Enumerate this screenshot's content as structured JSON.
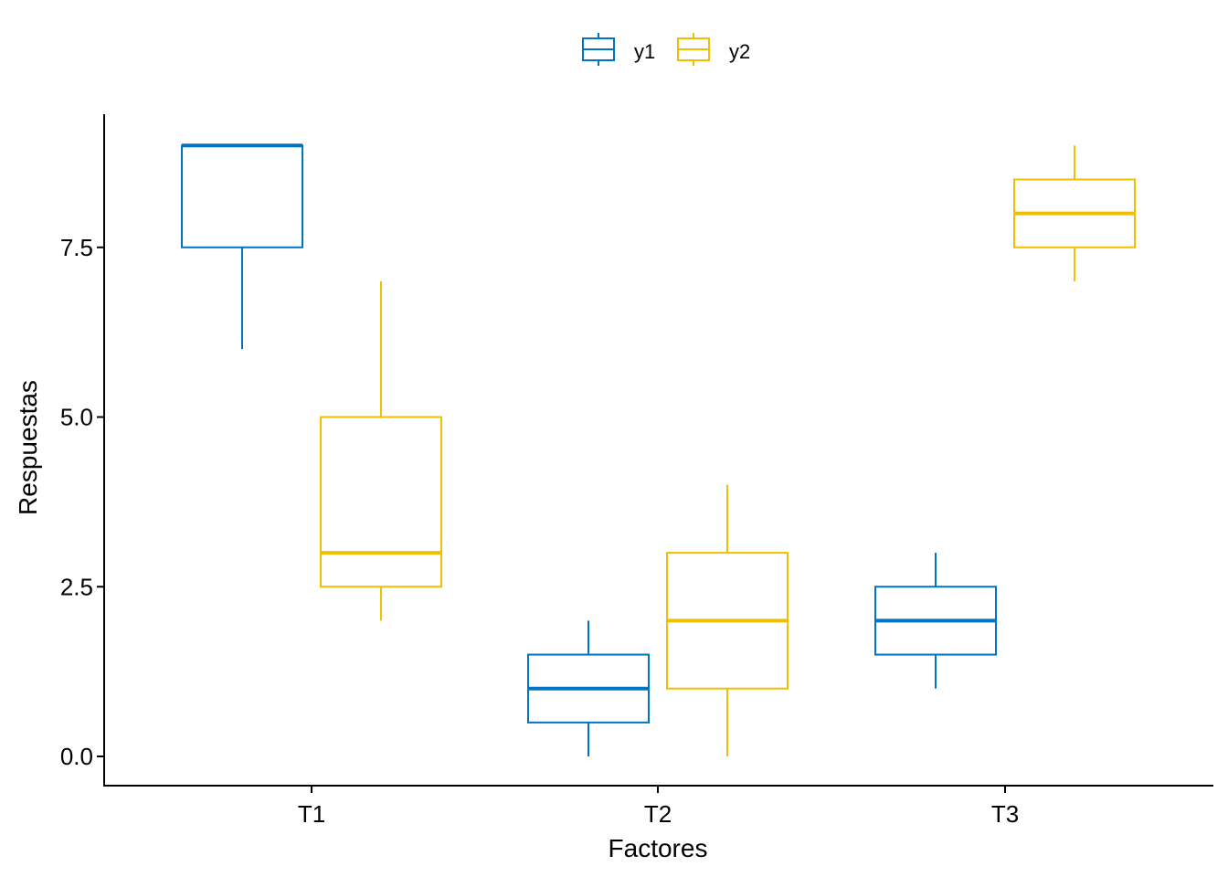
{
  "chart_data": {
    "type": "boxplot",
    "title": "",
    "xlabel": "Factores",
    "ylabel": "Respuestas",
    "categories": [
      "T1",
      "T2",
      "T3"
    ],
    "ylim": [
      -0.43,
      9.43
    ],
    "yticks": [
      0.0,
      2.5,
      5.0,
      7.5
    ],
    "ytick_labels": [
      "0.0",
      "2.5",
      "5.0",
      "7.5"
    ],
    "grid": false,
    "legend_position": "top",
    "series": [
      {
        "name": "y1",
        "color": "#0073C2",
        "boxes": [
          {
            "category": "T1",
            "min": 6,
            "q1": 7.5,
            "median": 9,
            "q3": 9,
            "max": 9
          },
          {
            "category": "T2",
            "min": 0,
            "q1": 0.5,
            "median": 1,
            "q3": 1.5,
            "max": 2
          },
          {
            "category": "T3",
            "min": 1,
            "q1": 1.5,
            "median": 2,
            "q3": 2.5,
            "max": 3
          }
        ]
      },
      {
        "name": "y2",
        "color": "#EFC000",
        "boxes": [
          {
            "category": "T1",
            "min": 2,
            "q1": 2.5,
            "median": 3,
            "q3": 5,
            "max": 7
          },
          {
            "category": "T2",
            "min": 0,
            "q1": 1,
            "median": 2,
            "q3": 3,
            "max": 4
          },
          {
            "category": "T3",
            "min": 7,
            "q1": 7.5,
            "median": 8,
            "q3": 8.5,
            "max": 9
          }
        ]
      }
    ]
  }
}
